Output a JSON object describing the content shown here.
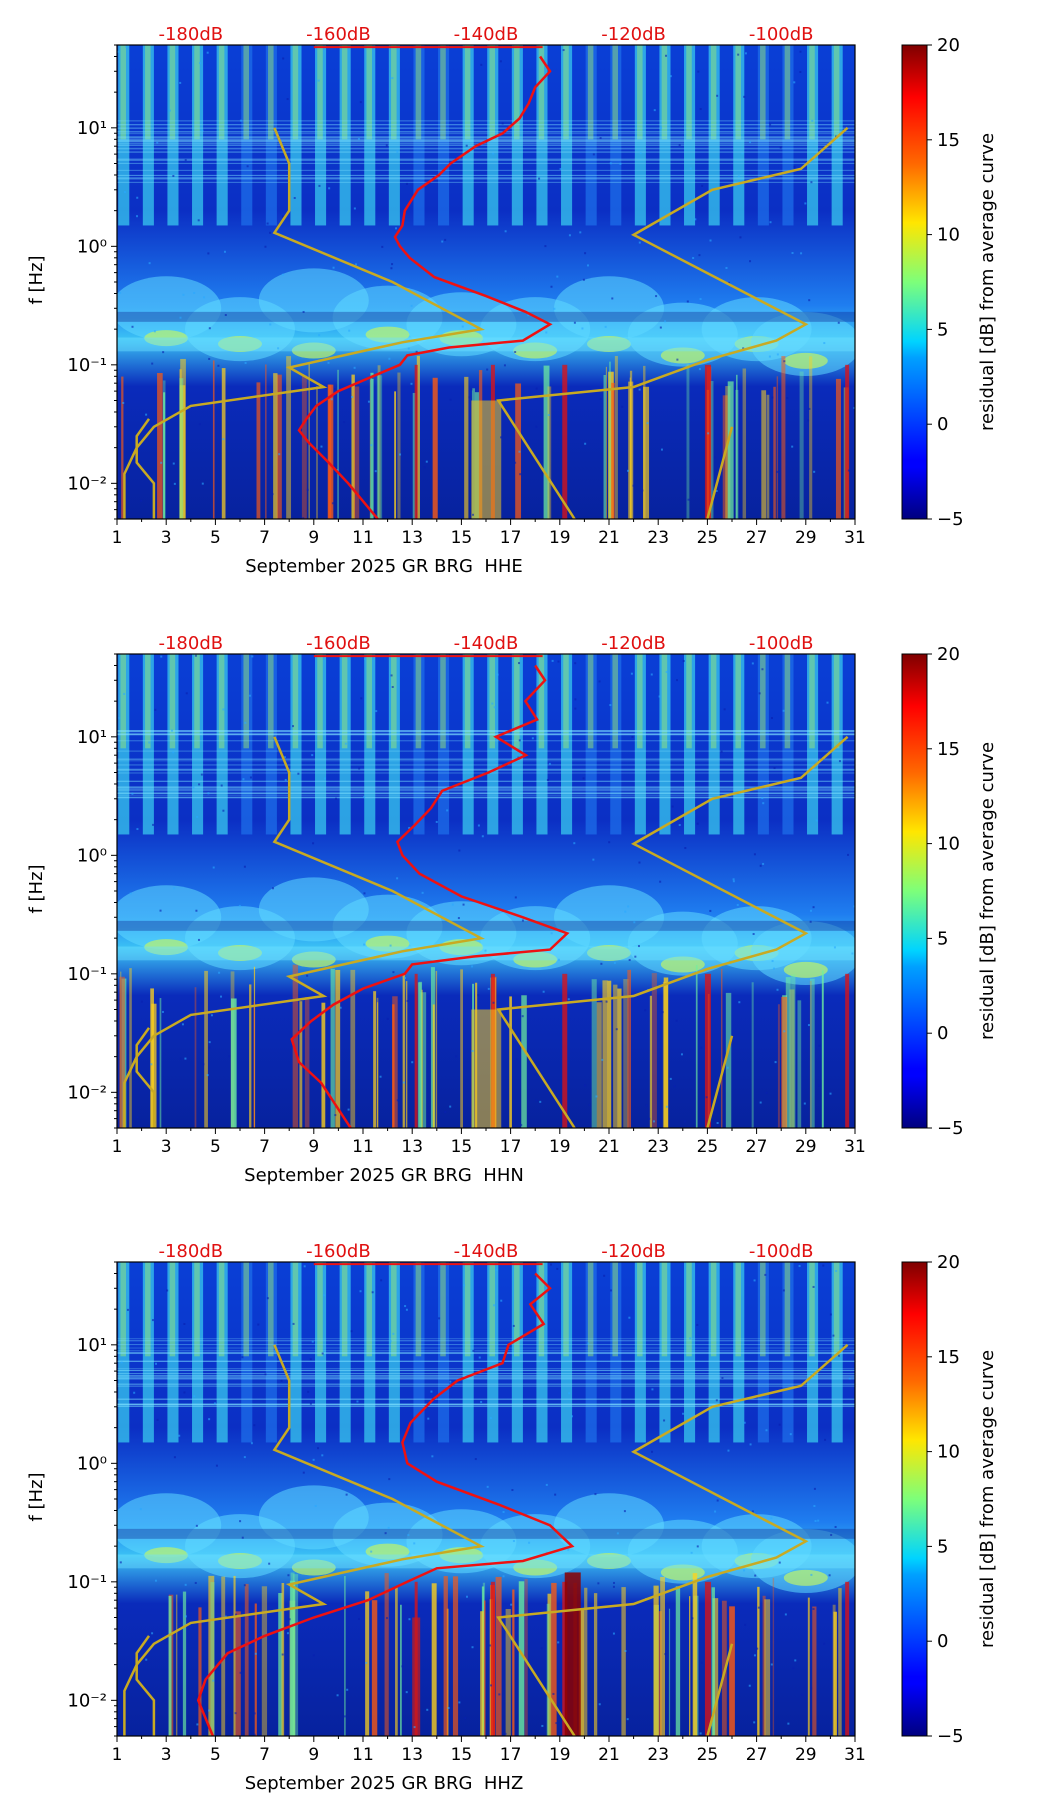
{
  "chart_data": {
    "type": "heatmap",
    "colorbar": {
      "label": "residual [dB] from average curve",
      "ticks": [
        "20",
        "15",
        "10",
        "5",
        "0",
        "−5"
      ],
      "range": [
        -5,
        20
      ],
      "colormap": "jet"
    },
    "x_ticks": [
      "1",
      "3",
      "5",
      "7",
      "9",
      "11",
      "13",
      "15",
      "17",
      "19",
      "21",
      "23",
      "25",
      "27",
      "29",
      "31"
    ],
    "x_range": [
      1,
      31
    ],
    "y_ticks": [
      "10⁻²",
      "10⁻¹",
      "10⁰",
      "10¹"
    ],
    "y_range_hz": [
      0.005,
      50
    ],
    "db_ticks": [
      "-180dB",
      "-160dB",
      "-140dB",
      "-120dB",
      "-100dB"
    ],
    "db_tick_days": [
      4,
      10,
      16,
      22,
      28
    ],
    "ylabel": "f [Hz]",
    "mean_curve_color": "#ee1111",
    "model_curve_color": "#c8aa22",
    "panels": [
      {
        "xlabel": "September 2025 GR BRG  HHE",
        "mean_curve": [
          [
            18.2,
            40
          ],
          [
            18.6,
            30
          ],
          [
            18.0,
            22
          ],
          [
            17.9,
            16
          ],
          [
            17.4,
            12
          ],
          [
            16.8,
            9
          ],
          [
            15.6,
            7
          ],
          [
            14.5,
            5
          ],
          [
            13.9,
            4
          ],
          [
            13.2,
            3
          ],
          [
            12.7,
            2
          ],
          [
            12.6,
            1.5
          ],
          [
            12.3,
            1.2
          ],
          [
            12.5,
            1.0
          ],
          [
            12.9,
            0.8
          ],
          [
            13.9,
            0.55
          ],
          [
            16.0,
            0.38
          ],
          [
            17.6,
            0.28
          ],
          [
            18.6,
            0.22
          ],
          [
            17.5,
            0.16
          ],
          [
            14.5,
            0.14
          ],
          [
            12.8,
            0.12
          ],
          [
            12.5,
            0.1
          ],
          [
            11.4,
            0.08
          ],
          [
            10.0,
            0.06
          ],
          [
            9.1,
            0.045
          ],
          [
            8.7,
            0.035
          ],
          [
            8.4,
            0.028
          ],
          [
            8.8,
            0.022
          ],
          [
            9.6,
            0.015
          ],
          [
            10.4,
            0.01
          ],
          [
            11.6,
            0.005
          ]
        ]
      },
      {
        "xlabel": "September 2025 GR BRG  HHN",
        "mean_curve": [
          [
            18.0,
            40
          ],
          [
            18.4,
            30
          ],
          [
            17.6,
            20
          ],
          [
            17.9,
            14
          ],
          [
            16.6,
            10
          ],
          [
            17.5,
            7
          ],
          [
            16.0,
            5
          ],
          [
            14.2,
            3.5
          ],
          [
            13.6,
            2.5
          ],
          [
            13.1,
            1.8
          ],
          [
            12.4,
            1.3
          ],
          [
            12.6,
            1.0
          ],
          [
            13.3,
            0.7
          ],
          [
            15.0,
            0.45
          ],
          [
            17.5,
            0.3
          ],
          [
            19.3,
            0.22
          ],
          [
            18.6,
            0.16
          ],
          [
            15.5,
            0.14
          ],
          [
            13.0,
            0.12
          ],
          [
            12.7,
            0.1
          ],
          [
            11.0,
            0.075
          ],
          [
            9.8,
            0.055
          ],
          [
            8.9,
            0.04
          ],
          [
            8.1,
            0.028
          ],
          [
            8.4,
            0.018
          ],
          [
            9.3,
            0.012
          ],
          [
            10.5,
            0.005
          ]
        ]
      },
      {
        "xlabel": "September 2025 GR BRG  HHZ",
        "mean_curve": [
          [
            18.0,
            40
          ],
          [
            18.6,
            30
          ],
          [
            17.8,
            22
          ],
          [
            18.5,
            15
          ],
          [
            17.0,
            10
          ],
          [
            16.5,
            7
          ],
          [
            14.8,
            5
          ],
          [
            13.8,
            3.5
          ],
          [
            13.1,
            2.2
          ],
          [
            12.6,
            1.5
          ],
          [
            12.8,
            1.0
          ],
          [
            14.0,
            0.7
          ],
          [
            16.5,
            0.45
          ],
          [
            18.6,
            0.3
          ],
          [
            19.5,
            0.2
          ],
          [
            17.5,
            0.15
          ],
          [
            14.0,
            0.13
          ],
          [
            12.8,
            0.1
          ],
          [
            11.2,
            0.07
          ],
          [
            9.0,
            0.05
          ],
          [
            7.0,
            0.035
          ],
          [
            5.5,
            0.025
          ],
          [
            4.6,
            0.015
          ],
          [
            4.3,
            0.01
          ],
          [
            4.9,
            0.005
          ]
        ]
      }
    ],
    "model_curves_day_hz": {
      "low_noise": [
        [
          1.3,
          0.005
        ],
        [
          1.3,
          0.012
        ],
        [
          1.8,
          0.02
        ],
        [
          2.5,
          0.03
        ],
        [
          4.0,
          0.045
        ],
        [
          9.4,
          0.065
        ],
        [
          8.0,
          0.095
        ],
        [
          12.6,
          0.155
        ],
        [
          15.8,
          0.2
        ],
        [
          12.2,
          0.5
        ],
        [
          7.4,
          1.3
        ],
        [
          8.0,
          2
        ],
        [
          8.0,
          5
        ],
        [
          7.4,
          10
        ]
      ],
      "high_noise": [
        [
          19.6,
          0.005
        ],
        [
          16.5,
          0.05
        ],
        [
          22.0,
          0.065
        ],
        [
          25.0,
          0.11
        ],
        [
          27.8,
          0.16
        ],
        [
          29.0,
          0.22
        ],
        [
          22.0,
          1.25
        ],
        [
          25.2,
          3
        ],
        [
          28.8,
          4.5
        ],
        [
          30.7,
          10
        ]
      ],
      "low_noise_lower": [
        [
          2.5,
          0.005
        ],
        [
          2.5,
          0.01
        ],
        [
          1.8,
          0.015
        ],
        [
          1.8,
          0.025
        ],
        [
          2.3,
          0.035
        ]
      ],
      "vertical": [
        [
          25.0,
          0.005
        ],
        [
          26.0,
          0.03
        ]
      ]
    }
  }
}
